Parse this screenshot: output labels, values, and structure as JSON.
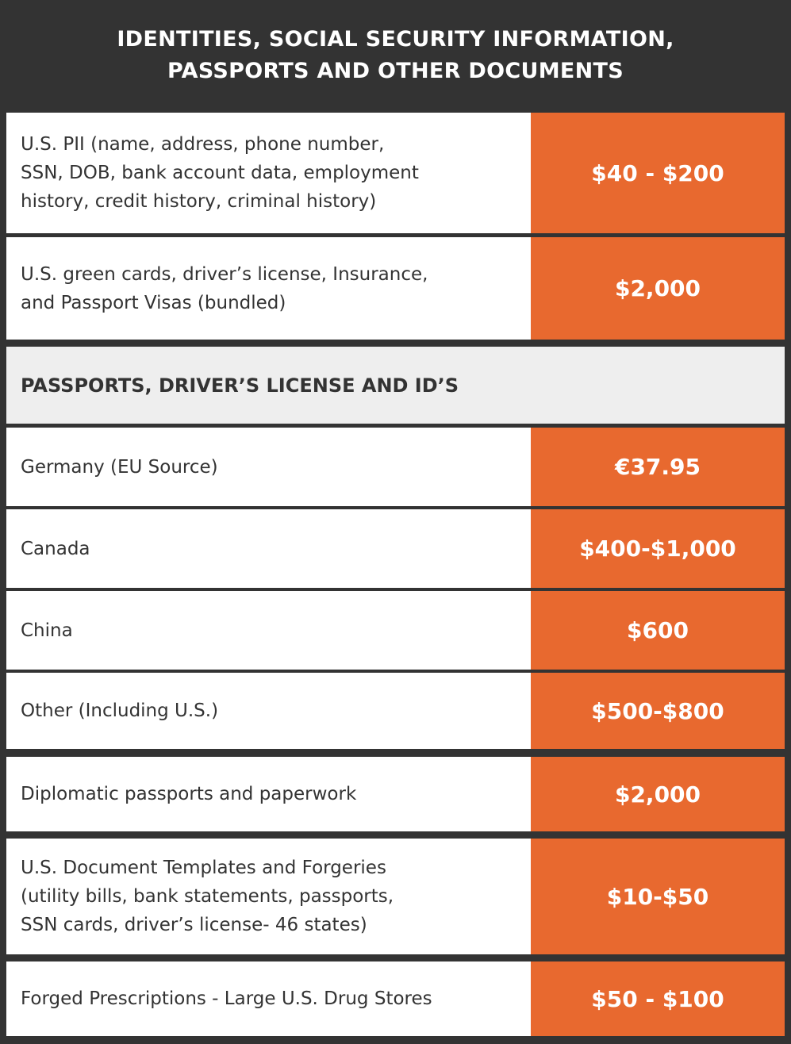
{
  "title": {
    "line1": "IDENTITIES, SOCIAL SECURITY INFORMATION,",
    "line2": "PASSPORTS AND OTHER DOCUMENTS"
  },
  "rows_top": [
    {
      "lines": [
        "U.S. PII (name, address, phone number,",
        "SSN, DOB, bank account data, employment",
        "history, credit history, criminal history)"
      ],
      "price": "$40 - $200"
    },
    {
      "lines": [
        "U.S. green cards, driver’s license, Insurance,",
        "and Passport Visas (bundled)"
      ],
      "price": "$2,000"
    }
  ],
  "section_header": "PASSPORTS, DRIVER’S LICENSE AND ID’S",
  "rows_passports": [
    {
      "lines": [
        "Germany (EU Source)"
      ],
      "price": "€37.95"
    },
    {
      "lines": [
        "Canada"
      ],
      "price": "$400-$1,000"
    },
    {
      "lines": [
        "China"
      ],
      "price": "$600"
    },
    {
      "lines": [
        "Other (Including U.S.)"
      ],
      "price": "$500-$800"
    }
  ],
  "rows_bottom": [
    {
      "lines": [
        "Diplomatic passports and paperwork"
      ],
      "price": "$2,000"
    },
    {
      "lines": [
        "U.S. Document Templates and Forgeries",
        "(utility bills, bank statements, passports,",
        "SSN cards, driver’s license- 46 states)"
      ],
      "price": "$10-$50"
    },
    {
      "lines": [
        "Forged Prescriptions - Large U.S. Drug Stores"
      ],
      "price": "$50 - $100"
    }
  ]
}
